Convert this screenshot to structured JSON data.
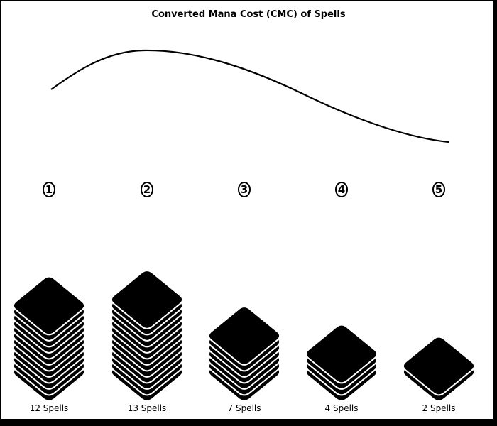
{
  "chart_data": {
    "type": "bar",
    "title": "Converted Mana Cost (CMC) of Spells",
    "categories": [
      "1",
      "2",
      "3",
      "4",
      "5"
    ],
    "values": [
      12,
      13,
      7,
      4,
      2
    ],
    "labels": [
      "12 Spells",
      "13 Spells",
      "7 Spells",
      "4 Spells",
      "2 Spells"
    ],
    "curve": "smoothed distribution line",
    "colors": {
      "background": "#ffffff",
      "border": "#000000",
      "card_fill": "#000000",
      "card_edge": "#ffffff",
      "curve": "#000000"
    }
  }
}
